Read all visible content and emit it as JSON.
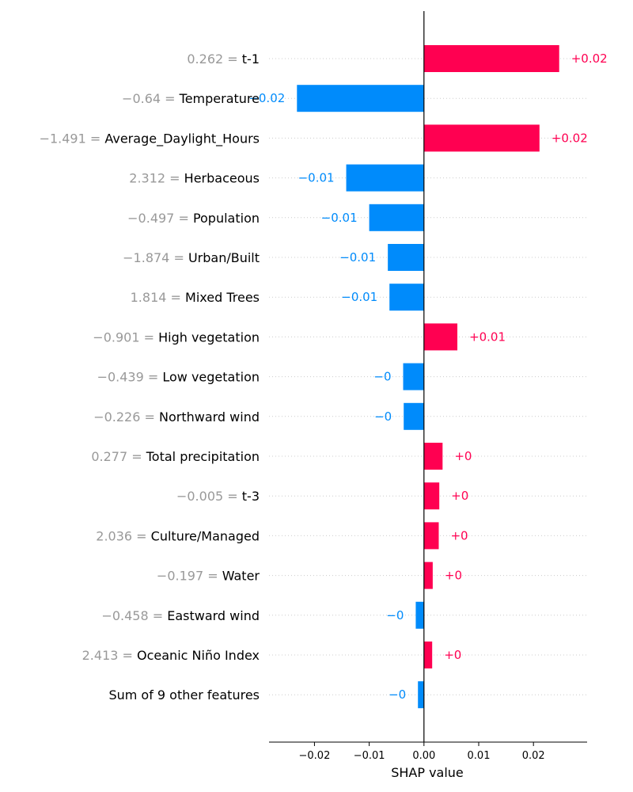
{
  "chart_data": {
    "type": "bar",
    "orientation": "horizontal",
    "xlabel": "SHAP value",
    "xlim": [
      -0.0283,
      0.0298
    ],
    "xticks": [
      -0.02,
      -0.01,
      0.0,
      0.01,
      0.02
    ],
    "xtick_labels": [
      "−0.02",
      "−0.01",
      "0.00",
      "0.01",
      "0.02"
    ],
    "grid": "horizontal dotted",
    "colors": {
      "positive": "#ff0051",
      "negative": "#008bfb",
      "feature_value": "#999999"
    },
    "features": [
      {
        "value": "0.262",
        "name": "t-1",
        "shap": 0.0247,
        "label": "+0.02"
      },
      {
        "value": "−0.64",
        "name": "Temperature",
        "shap": -0.0232,
        "label": "−0.02"
      },
      {
        "value": "−1.491",
        "name": "Average_Daylight_Hours",
        "shap": 0.0211,
        "label": "+0.02"
      },
      {
        "value": "2.312",
        "name": "Herbaceous",
        "shap": -0.0142,
        "label": "−0.01"
      },
      {
        "value": "−0.497",
        "name": "Population",
        "shap": -0.01,
        "label": "−0.01"
      },
      {
        "value": "−1.874",
        "name": "Urban/Built",
        "shap": -0.0066,
        "label": "−0.01"
      },
      {
        "value": "1.814",
        "name": "Mixed Trees",
        "shap": -0.0063,
        "label": "−0.01"
      },
      {
        "value": "−0.901",
        "name": "High vegetation",
        "shap": 0.0061,
        "label": "+0.01"
      },
      {
        "value": "−0.439",
        "name": "Low vegetation",
        "shap": -0.0038,
        "label": "−0"
      },
      {
        "value": "−0.226",
        "name": "Northward wind",
        "shap": -0.0037,
        "label": "−0"
      },
      {
        "value": "0.277",
        "name": "Total precipitation",
        "shap": 0.0034,
        "label": "+0"
      },
      {
        "value": "−0.005",
        "name": "t-3",
        "shap": 0.0028,
        "label": "+0"
      },
      {
        "value": "2.036",
        "name": "Culture/Managed",
        "shap": 0.0027,
        "label": "+0"
      },
      {
        "value": "−0.197",
        "name": "Water",
        "shap": 0.0016,
        "label": "+0"
      },
      {
        "value": "−0.458",
        "name": "Eastward wind",
        "shap": -0.0015,
        "label": "−0"
      },
      {
        "value": "2.413",
        "name": "Oceanic Niño Index",
        "shap": 0.0015,
        "label": "+0"
      },
      {
        "value": "",
        "name": "Sum of 9 other features",
        "shap": -0.0011,
        "label": "−0"
      }
    ]
  }
}
